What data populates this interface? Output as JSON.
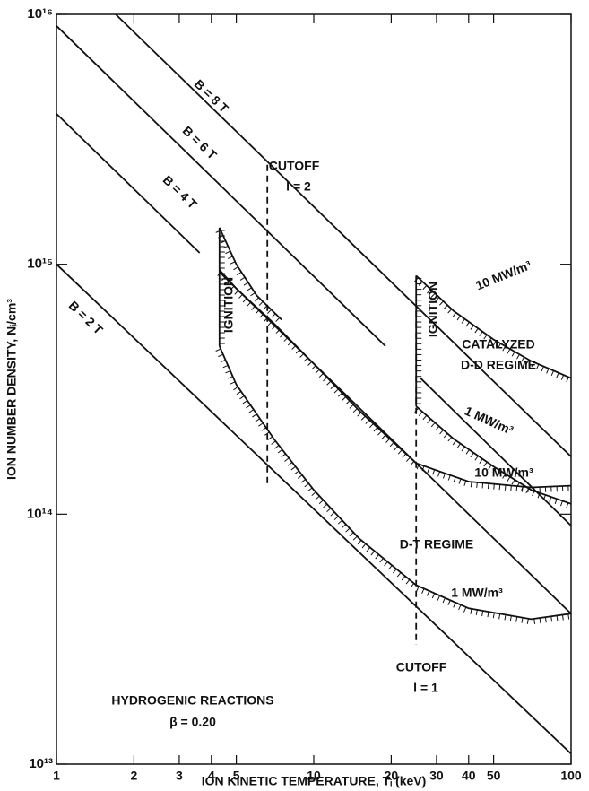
{
  "chart_data": {
    "type": "line",
    "xlabel": "ION KINETIC TEMPERATURE, Tᵢ (keV)",
    "ylabel": "ION NUMBER DENSITY, Nᵢ/cm³",
    "xscale": "log",
    "yscale": "log",
    "xlim": [
      1,
      100
    ],
    "ylim": [
      10000000000000.0,
      1e+16
    ],
    "xticks": [
      1,
      2,
      3,
      4,
      5,
      10,
      20,
      30,
      40,
      50,
      100
    ],
    "yticks": [
      {
        "value": 10000000000000.0,
        "label": "10¹³"
      },
      {
        "value": 100000000000000.0,
        "label": "10¹⁴"
      },
      {
        "value": 1000000000000000.0,
        "label": "10¹⁵"
      },
      {
        "value": 1e+16,
        "label": "10¹⁶"
      }
    ],
    "series": [
      {
        "color": "#111",
        "x": [
          1,
          100
        ],
        "values": [
          1000000000000000.0,
          11000000000000.0
        ]
      },
      {
        "color": "#111",
        "x": [
          1,
          3.6,
          4.3,
          4.3,
          100
        ],
        "values": [
          4000000000000000.0,
          1110000000000000.0,
          null,
          930000000000000.0,
          40000000000000.0
        ]
      },
      {
        "color": "#111",
        "x": [
          1,
          19,
          26,
          26,
          100
        ],
        "values": [
          9000000000000000.0,
          470000000000000.0,
          null,
          350000000000000.0,
          90000000000000.0
        ]
      },
      {
        "color": "#111",
        "x": [
          1.7,
          100
        ],
        "values": [
          1e+16,
          170000000000000.0
        ]
      },
      {
        "color": "#111",
        "hatched": true,
        "x": [
          4.3,
          5,
          7,
          10,
          15,
          25,
          40,
          70,
          100
        ],
        "values": [
          950000000000000.0,
          800000000000000.0,
          580000000000000.0,
          400000000000000.0,
          260000000000000.0,
          160000000000000.0,
          135000000000000.0,
          128000000000000.0,
          130000000000000.0
        ]
      },
      {
        "color": "#111",
        "hatched": true,
        "x": [
          4.3,
          5,
          7,
          10,
          15,
          25,
          40,
          70,
          100
        ],
        "values": [
          470000000000000.0,
          330000000000000.0,
          200000000000000.0,
          125000000000000.0,
          80000000000000.0,
          52000000000000.0,
          42000000000000.0,
          38000000000000.0,
          40000000000000.0
        ]
      },
      {
        "color": "#111",
        "hatched": true,
        "x": [
          4.3,
          5,
          6,
          7.5
        ],
        "values": [
          1400000000000000.0,
          1000000000000000.0,
          750000000000000.0,
          600000000000000.0
        ]
      },
      {
        "color": "#111",
        "hatched": true,
        "x": [
          4.3,
          4.3
        ],
        "values": [
          470000000000000.0,
          1400000000000000.0
        ]
      },
      {
        "color": "#111",
        "hatched": true,
        "x": [
          25,
          25
        ],
        "values": [
          270000000000000.0,
          900000000000000.0
        ]
      },
      {
        "color": "#111",
        "hatched": true,
        "x": [
          25,
          35,
          50,
          70,
          100
        ],
        "values": [
          900000000000000.0,
          650000000000000.0,
          500000000000000.0,
          410000000000000.0,
          350000000000000.0
        ]
      },
      {
        "color": "#111",
        "hatched": true,
        "x": [
          25,
          35,
          50,
          70,
          100
        ],
        "values": [
          270000000000000.0,
          200000000000000.0,
          155000000000000.0,
          125000000000000.0,
          110000000000000.0
        ]
      },
      {
        "color": "#111",
        "dashed": true,
        "x": [
          6.6,
          6.6
        ],
        "values": [
          2500000000000000.0,
          130000000000000.0
        ]
      },
      {
        "color": "#111",
        "dashed": true,
        "x": [
          25,
          25
        ],
        "values": [
          650000000000000.0,
          30000000000000.0
        ]
      }
    ],
    "annotations": [
      "B = 8 T",
      "B = 6 T",
      "B = 4 T",
      "B = 2 T",
      "CUTOFF",
      "l = 2",
      "IGNITION",
      "IGNITION",
      "10 MW/m³",
      "CATALYZED",
      "D-D REGIME",
      "1 MW/m³",
      "10 MW/m³",
      "D-T REGIME",
      "1 MW/m³",
      "CUTOFF",
      "l = 1",
      "HYDROGENIC REACTIONS",
      "β = 0.20"
    ]
  }
}
